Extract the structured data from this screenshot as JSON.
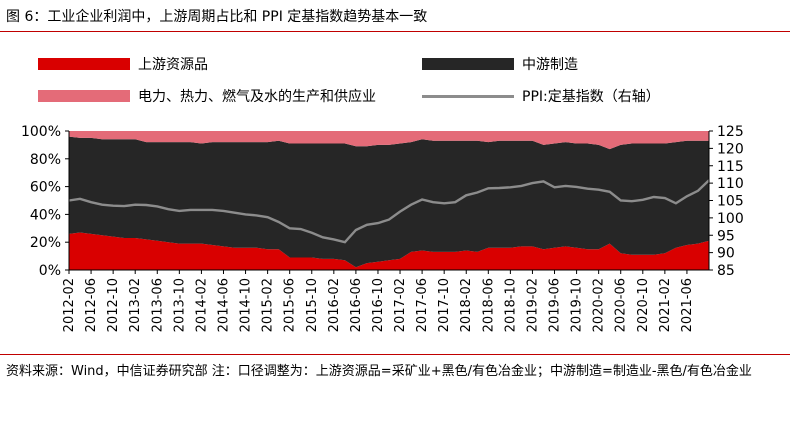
{
  "figure": {
    "title": "图 6：工业企业利润中，上游周期占比和 PPI 定基指数趋势基本一致",
    "source": "资料来源：Wind，中信证券研究部    注：口径调整为：上游资源品=采矿业+黑色/有色冶金业；中游制造=制造业-黑色/有色冶金业"
  },
  "colors": {
    "upstream": "#d90000",
    "midstream": "#262626",
    "utilities": "#e46b78",
    "ppi": "#8c8c8c",
    "rule": "#c00000"
  },
  "chart_data": {
    "type": "area",
    "stacked_percent": true,
    "legend_position": "top",
    "x_tick_labels": [
      "2012-02",
      "2012-06",
      "2012-10",
      "2013-02",
      "2013-06",
      "2013-10",
      "2014-02",
      "2014-06",
      "2014-10",
      "2015-02",
      "2015-06",
      "2015-10",
      "2016-02",
      "2016-06",
      "2016-10",
      "2017-02",
      "2017-06",
      "2017-10",
      "2018-02",
      "2018-06",
      "2018-10",
      "2019-02",
      "2019-06",
      "2019-10",
      "2020-02",
      "2020-06",
      "2020-10",
      "2021-02",
      "2021-06"
    ],
    "y_left": {
      "range": [
        0,
        100
      ],
      "ticks": [
        "0%",
        "20%",
        "40%",
        "60%",
        "80%",
        "100%"
      ]
    },
    "y_right": {
      "range": [
        85,
        125
      ],
      "ticks": [
        "85",
        "90",
        "95",
        "100",
        "105",
        "110",
        "115",
        "120",
        "125"
      ]
    },
    "series": [
      {
        "name": "上游资源品",
        "kind": "stacked_area",
        "values": [
          26,
          27,
          26,
          25,
          24,
          23,
          23,
          22,
          21,
          20,
          19,
          19,
          19,
          18,
          17,
          16,
          16,
          16,
          15,
          15,
          9,
          9,
          9,
          8,
          8,
          7,
          2,
          5,
          6,
          7,
          8,
          13,
          14,
          13,
          13,
          13,
          14,
          13,
          16,
          16,
          16,
          17,
          17,
          15,
          16,
          17,
          16,
          15,
          15,
          19,
          12,
          11,
          11,
          11,
          12,
          16,
          18,
          19,
          21
        ]
      },
      {
        "name": "中游制造",
        "kind": "stacked_area",
        "values": [
          70,
          68,
          69,
          69,
          70,
          71,
          71,
          70,
          71,
          72,
          73,
          73,
          72,
          74,
          75,
          76,
          76,
          76,
          77,
          78,
          82,
          82,
          82,
          83,
          83,
          84,
          87,
          84,
          84,
          83,
          83,
          79,
          80,
          80,
          80,
          80,
          79,
          80,
          76,
          77,
          77,
          76,
          76,
          75,
          75,
          75,
          75,
          76,
          75,
          68,
          78,
          80,
          80,
          80,
          79,
          76,
          75,
          74,
          72
        ]
      },
      {
        "name": "电力、热力、燃气及水的生产和供应业",
        "kind": "stacked_area",
        "values": [
          4,
          5,
          5,
          6,
          6,
          6,
          6,
          8,
          8,
          8,
          8,
          8,
          9,
          8,
          8,
          8,
          8,
          8,
          8,
          7,
          9,
          9,
          9,
          9,
          9,
          9,
          11,
          11,
          10,
          10,
          9,
          8,
          6,
          7,
          7,
          7,
          7,
          7,
          8,
          7,
          7,
          7,
          7,
          10,
          9,
          8,
          9,
          9,
          10,
          13,
          10,
          9,
          9,
          9,
          9,
          8,
          7,
          7,
          7
        ]
      },
      {
        "name": "PPI:定基指数（右轴）",
        "kind": "line",
        "axis": "right",
        "values": [
          105,
          105.5,
          104.5,
          103.8,
          103.5,
          103.4,
          103.8,
          103.7,
          103.3,
          102.5,
          102,
          102.3,
          102.3,
          102.3,
          102,
          101.5,
          101,
          100.7,
          100.2,
          98.8,
          97,
          96.8,
          95.7,
          94.4,
          93.8,
          93,
          96.5,
          98,
          98.5,
          99.5,
          101.8,
          103.8,
          105.3,
          104.5,
          104.2,
          104.5,
          106.5,
          107.3,
          108.5,
          108.6,
          108.8,
          109.2,
          110,
          110.5,
          108.8,
          109.2,
          108.9,
          108.4,
          108.1,
          107.5,
          105,
          104.8,
          105.2,
          106,
          105.7,
          104.2,
          106.2,
          107.8,
          110.8
        ]
      }
    ]
  }
}
